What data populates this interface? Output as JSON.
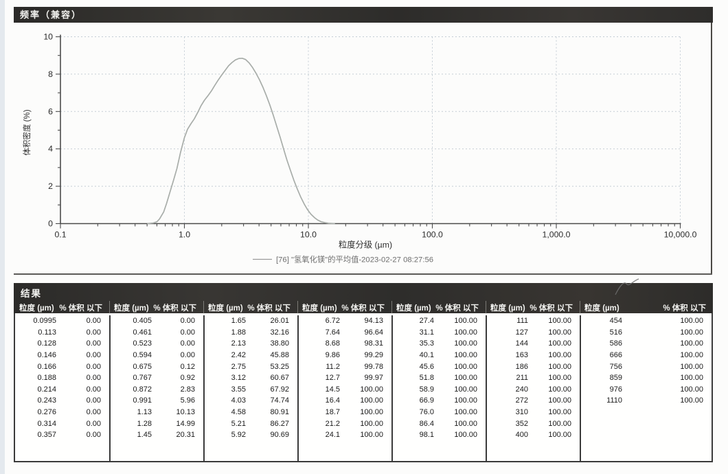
{
  "frequency_panel": {
    "title": "频率（兼容）",
    "ylabel": "体积密度 (%)",
    "xlabel": "粒度分级 (µm)",
    "legend": "[76] \"氢氧化镁\"的平均值-2023-02-27 08:27:56",
    "x_ticks": [
      "0.1",
      "1.0",
      "10.0",
      "100.0",
      "1,000.0",
      "10,000.0"
    ],
    "y_ticks": [
      "0",
      "2",
      "4",
      "6",
      "8",
      "10"
    ],
    "curve_color": "#a8ada9",
    "grid_color": "#c3cdd4",
    "axis_color": "#4a4a4a"
  },
  "chart_data": {
    "type": "line",
    "title": "频率（兼容）",
    "xlabel": "粒度分级 (µm)",
    "ylabel": "体积密度 (%)",
    "x_scale": "log",
    "xlim": [
      0.1,
      10000
    ],
    "ylim": [
      0,
      10
    ],
    "grid": true,
    "legend_position": "bottom",
    "series": [
      {
        "name": "[76] \"氢氧化镁\"的平均值-2023-02-27 08:27:56",
        "color": "#a8ada9",
        "points": [
          [
            0.5,
            0
          ],
          [
            0.56,
            0.03
          ],
          [
            0.6,
            0.1
          ],
          [
            0.63,
            0.25
          ],
          [
            0.68,
            0.62
          ],
          [
            0.72,
            1.1
          ],
          [
            0.77,
            1.75
          ],
          [
            0.82,
            2.35
          ],
          [
            0.87,
            2.95
          ],
          [
            0.93,
            3.8
          ],
          [
            1.0,
            4.6
          ],
          [
            1.06,
            5.05
          ],
          [
            1.13,
            5.35
          ],
          [
            1.2,
            5.6
          ],
          [
            1.28,
            5.95
          ],
          [
            1.36,
            6.3
          ],
          [
            1.45,
            6.6
          ],
          [
            1.55,
            6.85
          ],
          [
            1.65,
            7.1
          ],
          [
            1.76,
            7.4
          ],
          [
            1.88,
            7.7
          ],
          [
            2.0,
            7.95
          ],
          [
            2.13,
            8.2
          ],
          [
            2.27,
            8.45
          ],
          [
            2.42,
            8.62
          ],
          [
            2.58,
            8.76
          ],
          [
            2.75,
            8.84
          ],
          [
            2.93,
            8.85
          ],
          [
            3.12,
            8.78
          ],
          [
            3.33,
            8.6
          ],
          [
            3.55,
            8.35
          ],
          [
            3.78,
            8.05
          ],
          [
            4.03,
            7.7
          ],
          [
            4.3,
            7.3
          ],
          [
            4.58,
            6.85
          ],
          [
            4.89,
            6.35
          ],
          [
            5.21,
            5.8
          ],
          [
            5.55,
            5.22
          ],
          [
            5.92,
            4.62
          ],
          [
            6.31,
            4.0
          ],
          [
            6.72,
            3.4
          ],
          [
            7.17,
            2.85
          ],
          [
            7.64,
            2.32
          ],
          [
            8.14,
            1.85
          ],
          [
            8.68,
            1.42
          ],
          [
            9.25,
            1.05
          ],
          [
            9.86,
            0.74
          ],
          [
            10.5,
            0.5
          ],
          [
            11.2,
            0.32
          ],
          [
            11.9,
            0.19
          ],
          [
            12.7,
            0.1
          ],
          [
            13.6,
            0.05
          ],
          [
            14.5,
            0.02
          ],
          [
            15.4,
            0.01
          ],
          [
            16.4,
            0
          ]
        ]
      }
    ]
  },
  "results_panel": {
    "title": "结果",
    "col_size_header": "粒度 (µm)",
    "col_pct_header": "% 体积 以下",
    "groups": [
      [
        [
          "0.0995",
          "0.00"
        ],
        [
          "0.113",
          "0.00"
        ],
        [
          "0.128",
          "0.00"
        ],
        [
          "0.146",
          "0.00"
        ],
        [
          "0.166",
          "0.00"
        ],
        [
          "0.188",
          "0.00"
        ],
        [
          "0.214",
          "0.00"
        ],
        [
          "0.243",
          "0.00"
        ],
        [
          "0.276",
          "0.00"
        ],
        [
          "0.314",
          "0.00"
        ],
        [
          "0.357",
          "0.00"
        ]
      ],
      [
        [
          "0.405",
          "0.00"
        ],
        [
          "0.461",
          "0.00"
        ],
        [
          "0.523",
          "0.00"
        ],
        [
          "0.594",
          "0.00"
        ],
        [
          "0.675",
          "0.12"
        ],
        [
          "0.767",
          "0.92"
        ],
        [
          "0.872",
          "2.83"
        ],
        [
          "0.991",
          "5.96"
        ],
        [
          "1.13",
          "10.13"
        ],
        [
          "1.28",
          "14.99"
        ],
        [
          "1.45",
          "20.31"
        ]
      ],
      [
        [
          "1.65",
          "26.01"
        ],
        [
          "1.88",
          "32.16"
        ],
        [
          "2.13",
          "38.80"
        ],
        [
          "2.42",
          "45.88"
        ],
        [
          "2.75",
          "53.25"
        ],
        [
          "3.12",
          "60.67"
        ],
        [
          "3.55",
          "67.92"
        ],
        [
          "4.03",
          "74.74"
        ],
        [
          "4.58",
          "80.91"
        ],
        [
          "5.21",
          "86.27"
        ],
        [
          "5.92",
          "90.69"
        ]
      ],
      [
        [
          "6.72",
          "94.13"
        ],
        [
          "7.64",
          "96.64"
        ],
        [
          "8.68",
          "98.31"
        ],
        [
          "9.86",
          "99.29"
        ],
        [
          "11.2",
          "99.78"
        ],
        [
          "12.7",
          "99.97"
        ],
        [
          "14.5",
          "100.00"
        ],
        [
          "16.4",
          "100.00"
        ],
        [
          "18.7",
          "100.00"
        ],
        [
          "21.2",
          "100.00"
        ],
        [
          "24.1",
          "100.00"
        ]
      ],
      [
        [
          "27.4",
          "100.00"
        ],
        [
          "31.1",
          "100.00"
        ],
        [
          "35.3",
          "100.00"
        ],
        [
          "40.1",
          "100.00"
        ],
        [
          "45.6",
          "100.00"
        ],
        [
          "51.8",
          "100.00"
        ],
        [
          "58.9",
          "100.00"
        ],
        [
          "66.9",
          "100.00"
        ],
        [
          "76.0",
          "100.00"
        ],
        [
          "86.4",
          "100.00"
        ],
        [
          "98.1",
          "100.00"
        ]
      ],
      [
        [
          "111",
          "100.00"
        ],
        [
          "127",
          "100.00"
        ],
        [
          "144",
          "100.00"
        ],
        [
          "163",
          "100.00"
        ],
        [
          "186",
          "100.00"
        ],
        [
          "211",
          "100.00"
        ],
        [
          "240",
          "100.00"
        ],
        [
          "272",
          "100.00"
        ],
        [
          "310",
          "100.00"
        ],
        [
          "352",
          "100.00"
        ],
        [
          "400",
          "100.00"
        ]
      ],
      [
        [
          "454",
          "100.00"
        ],
        [
          "516",
          "100.00"
        ],
        [
          "586",
          "100.00"
        ],
        [
          "666",
          "100.00"
        ],
        [
          "756",
          "100.00"
        ],
        [
          "859",
          "100.00"
        ],
        [
          "976",
          "100.00"
        ],
        [
          "1110",
          "100.00"
        ]
      ]
    ]
  }
}
